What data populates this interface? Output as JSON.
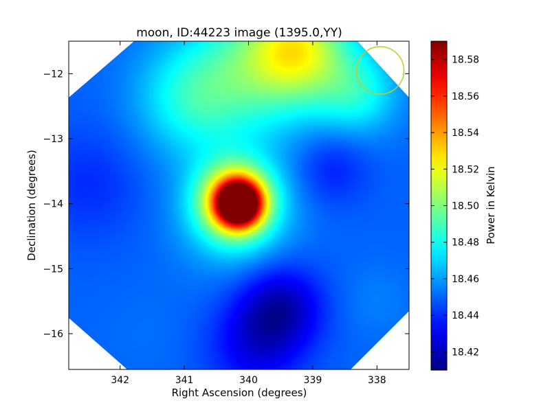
{
  "chart_data": {
    "type": "heatmap",
    "title": "moon, ID:44223 image (1395.0,YY)",
    "xlabel": "Right Ascension (degrees)",
    "ylabel": "Declination (degrees)",
    "xlim": [
      342.8,
      337.5
    ],
    "ylim": [
      -16.55,
      -11.5
    ],
    "x_ticks": [
      342,
      341,
      340,
      339,
      338
    ],
    "x_tick_labels": [
      "342",
      "341",
      "340",
      "339",
      "338"
    ],
    "y_ticks": [
      -12,
      -13,
      -14,
      -15,
      -16
    ],
    "y_tick_labels": [
      "−12",
      "−13",
      "−14",
      "−15",
      "−16"
    ],
    "colorbar": {
      "label": "Power in Kelvin",
      "colormap": "jet",
      "range": [
        18.41,
        18.59
      ],
      "ticks": [
        18.42,
        18.44,
        18.46,
        18.48,
        18.5,
        18.52,
        18.54,
        18.56,
        18.58
      ],
      "tick_labels": [
        "18.42",
        "18.44",
        "18.46",
        "18.48",
        "18.50",
        "18.52",
        "18.54",
        "18.56",
        "18.58"
      ]
    },
    "background_level": 18.45,
    "features": [
      {
        "ra": 340.15,
        "dec": -14.0,
        "value": 18.59,
        "sigma": 0.22
      },
      {
        "ra": 340.2,
        "dec": -13.95,
        "value": 18.53,
        "sigma": 0.38
      },
      {
        "ra": 340.2,
        "dec": -14.1,
        "value": 18.48,
        "sigma": 0.6
      },
      {
        "ra": 339.2,
        "dec": -11.6,
        "value": 18.505,
        "sigma": 0.55
      },
      {
        "ra": 339.9,
        "dec": -11.9,
        "value": 18.485,
        "sigma": 0.75
      },
      {
        "ra": 340.9,
        "dec": -12.4,
        "value": 18.478,
        "sigma": 0.6
      },
      {
        "ra": 338.3,
        "dec": -12.3,
        "value": 18.478,
        "sigma": 0.45
      },
      {
        "ra": 339.5,
        "dec": -15.6,
        "value": 18.42,
        "sigma": 0.45
      },
      {
        "ra": 338.7,
        "dec": -13.45,
        "value": 18.437,
        "sigma": 0.4
      },
      {
        "ra": 339.9,
        "dec": -16.2,
        "value": 18.43,
        "sigma": 0.5
      },
      {
        "ra": 342.5,
        "dec": -13.7,
        "value": 18.44,
        "sigma": 0.6
      },
      {
        "ra": 341.6,
        "dec": -16.0,
        "value": 18.452,
        "sigma": 0.5
      },
      {
        "ra": 338.0,
        "dec": -15.5,
        "value": 18.455,
        "sigma": 0.4
      }
    ],
    "beam_circle": {
      "ra": 337.95,
      "dec": -11.95,
      "radius_deg": 0.37,
      "color": "#c8c828"
    },
    "mask_color": "#ffffff"
  }
}
